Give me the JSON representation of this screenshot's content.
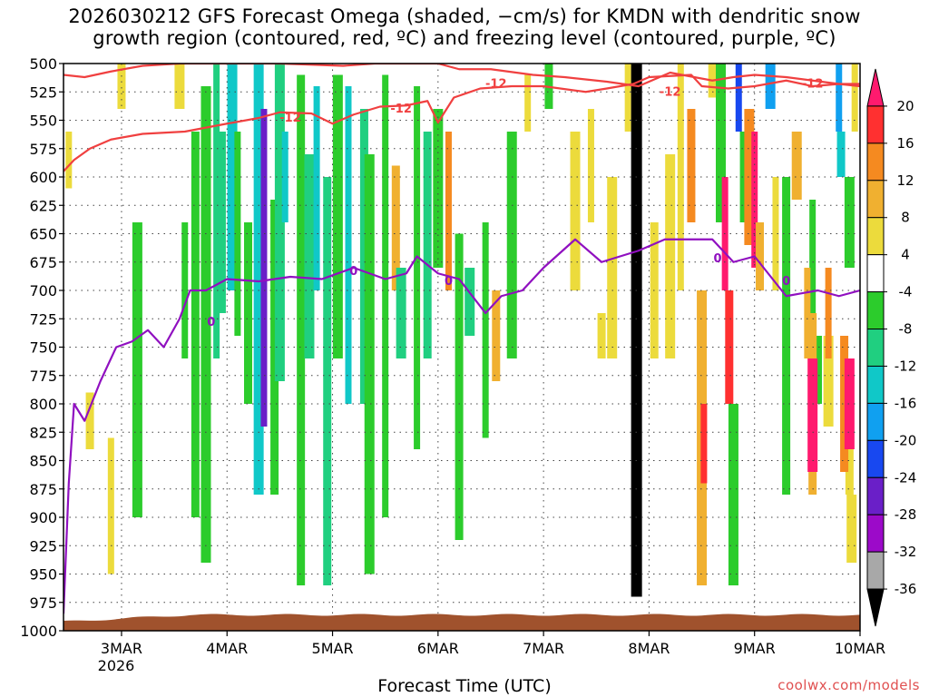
{
  "title": {
    "line1": "2026030212 GFS Forecast Omega (shaded, −cm/s) for KMDN with dendritic snow",
    "line2": "growth region (contoured, red, ºC) and freezing level (contoured, purple, ºC)"
  },
  "xlabel": "Forecast Time (UTC)",
  "credit": "coolwx.com/models",
  "chart_data": {
    "type": "heatmap",
    "x": {
      "tick_labels": [
        "3MAR",
        "4MAR",
        "5MAR",
        "6MAR",
        "7MAR",
        "8MAR",
        "9MAR",
        "10MAR"
      ],
      "sublabel": "2026",
      "range_days": [
        -0.55,
        7.0
      ]
    },
    "y": {
      "tick_labels": [
        "500",
        "525",
        "550",
        "575",
        "600",
        "625",
        "650",
        "675",
        "700",
        "725",
        "750",
        "775",
        "800",
        "825",
        "850",
        "875",
        "900",
        "925",
        "950",
        "975",
        "1000"
      ],
      "range_hpa": [
        500,
        1000
      ],
      "inverted": true
    },
    "colorbar": {
      "labels": [
        "20",
        "16",
        "12",
        "8",
        "4",
        "-4",
        "-8",
        "-12",
        "-16",
        "-20",
        "-24",
        "-28",
        "-32",
        "-36"
      ],
      "levels": [
        20,
        16,
        12,
        8,
        4,
        -4,
        -8,
        -12,
        -16,
        -20,
        -24,
        -28,
        -32,
        -36
      ],
      "colors": [
        "#ff1a6e",
        "#ff3030",
        "#f58a20",
        "#f0b030",
        "#ecdb3c",
        "#ffffff",
        "#2ccc2c",
        "#20cf80",
        "#10c8c8",
        "#10a0f0",
        "#1848f0",
        "#6a1fc8",
        "#9c0ac9",
        "#a8a8a8",
        "#000000"
      ]
    },
    "contours": [
      {
        "label": "-12",
        "color": "#f04040"
      },
      {
        "label": "0",
        "color": "#9010c0"
      }
    ],
    "dgz_top_hpa": [
      [
        -0.55,
        510
      ],
      [
        -0.35,
        512
      ],
      [
        -0.1,
        507
      ],
      [
        0.2,
        502
      ],
      [
        0.55,
        500
      ],
      [
        1.0,
        500
      ],
      [
        1.5,
        500
      ],
      [
        1.8,
        501
      ],
      [
        2.1,
        502
      ],
      [
        2.4,
        500
      ],
      [
        3.0,
        500
      ],
      [
        3.2,
        505
      ],
      [
        3.5,
        505
      ],
      [
        3.9,
        510
      ],
      [
        4.2,
        512
      ],
      [
        4.6,
        516
      ],
      [
        4.9,
        520
      ],
      [
        5.2,
        508
      ],
      [
        5.6,
        515
      ],
      [
        5.8,
        512
      ],
      [
        6.0,
        510
      ],
      [
        6.3,
        512
      ],
      [
        6.55,
        515
      ],
      [
        6.8,
        518
      ],
      [
        7.0,
        520
      ]
    ],
    "dgz_bottom_hpa": [
      [
        -0.55,
        595
      ],
      [
        -0.45,
        585
      ],
      [
        -0.3,
        575
      ],
      [
        -0.1,
        567
      ],
      [
        0.2,
        562
      ],
      [
        0.6,
        560
      ],
      [
        1.0,
        553
      ],
      [
        1.3,
        548
      ],
      [
        1.5,
        543
      ],
      [
        1.8,
        544
      ],
      [
        2.0,
        553
      ],
      [
        2.2,
        545
      ],
      [
        2.45,
        538
      ],
      [
        2.7,
        537
      ],
      [
        2.9,
        533
      ],
      [
        3.0,
        552
      ],
      [
        3.15,
        530
      ],
      [
        3.4,
        522
      ],
      [
        3.7,
        520
      ],
      [
        4.0,
        520
      ],
      [
        4.4,
        525
      ],
      [
        4.6,
        522
      ],
      [
        4.85,
        518
      ],
      [
        5.0,
        512
      ],
      [
        5.4,
        510
      ],
      [
        5.5,
        520
      ],
      [
        5.75,
        522
      ],
      [
        6.0,
        520
      ],
      [
        6.3,
        515
      ],
      [
        6.55,
        520
      ],
      [
        6.8,
        518
      ],
      [
        7.0,
        518
      ]
    ],
    "freezing_level_hpa": [
      [
        -0.55,
        985
      ],
      [
        -0.5,
        870
      ],
      [
        -0.45,
        800
      ],
      [
        -0.35,
        815
      ],
      [
        -0.2,
        780
      ],
      [
        -0.05,
        750
      ],
      [
        0.1,
        745
      ],
      [
        0.25,
        735
      ],
      [
        0.4,
        750
      ],
      [
        0.55,
        725
      ],
      [
        0.65,
        700
      ],
      [
        0.8,
        700
      ],
      [
        1.0,
        690
      ],
      [
        1.3,
        692
      ],
      [
        1.6,
        688
      ],
      [
        1.9,
        690
      ],
      [
        2.2,
        680
      ],
      [
        2.5,
        690
      ],
      [
        2.7,
        685
      ],
      [
        2.8,
        670
      ],
      [
        3.0,
        685
      ],
      [
        3.2,
        690
      ],
      [
        3.45,
        720
      ],
      [
        3.6,
        705
      ],
      [
        3.8,
        700
      ],
      [
        4.0,
        680
      ],
      [
        4.3,
        655
      ],
      [
        4.55,
        675
      ],
      [
        4.9,
        665
      ],
      [
        5.15,
        655
      ],
      [
        5.4,
        655
      ],
      [
        5.6,
        655
      ],
      [
        5.8,
        675
      ],
      [
        6.0,
        670
      ],
      [
        6.3,
        705
      ],
      [
        6.6,
        700
      ],
      [
        6.8,
        705
      ],
      [
        7.0,
        700
      ]
    ],
    "shading_cells": [
      [
        -0.5,
        560,
        610,
        4
      ],
      [
        -0.3,
        790,
        840,
        4
      ],
      [
        -0.15,
        690,
        900,
        -4
      ],
      [
        -0.1,
        830,
        950,
        4
      ],
      [
        0.0,
        500,
        540,
        4
      ],
      [
        0.15,
        640,
        900,
        -8
      ],
      [
        0.3,
        600,
        850,
        -4
      ],
      [
        0.45,
        800,
        860,
        -4
      ],
      [
        0.55,
        500,
        540,
        4
      ],
      [
        0.6,
        640,
        760,
        -8
      ],
      [
        0.7,
        560,
        900,
        -8
      ],
      [
        0.8,
        520,
        940,
        -8
      ],
      [
        0.9,
        500,
        760,
        -12
      ],
      [
        0.95,
        560,
        720,
        -12
      ],
      [
        1.05,
        500,
        700,
        -16
      ],
      [
        1.1,
        560,
        740,
        -8
      ],
      [
        1.2,
        640,
        800,
        -8
      ],
      [
        1.3,
        500,
        880,
        -16
      ],
      [
        1.35,
        540,
        820,
        -28
      ],
      [
        1.45,
        620,
        880,
        -8
      ],
      [
        1.5,
        500,
        780,
        -12
      ],
      [
        1.55,
        560,
        640,
        -16
      ],
      [
        1.7,
        510,
        960,
        -8
      ],
      [
        1.78,
        580,
        760,
        -12
      ],
      [
        1.85,
        520,
        700,
        -16
      ],
      [
        1.95,
        600,
        960,
        -12
      ],
      [
        2.05,
        510,
        760,
        -8
      ],
      [
        2.15,
        520,
        800,
        -16
      ],
      [
        2.3,
        540,
        800,
        -12
      ],
      [
        2.35,
        580,
        950,
        -8
      ],
      [
        2.5,
        510,
        900,
        -8
      ],
      [
        2.6,
        590,
        700,
        8
      ],
      [
        2.65,
        680,
        760,
        -12
      ],
      [
        2.8,
        520,
        840,
        -8
      ],
      [
        2.9,
        560,
        760,
        -12
      ],
      [
        3.0,
        540,
        680,
        -8
      ],
      [
        3.1,
        560,
        700,
        12
      ],
      [
        3.2,
        650,
        920,
        -8
      ],
      [
        3.3,
        680,
        740,
        -12
      ],
      [
        3.45,
        640,
        830,
        -8
      ],
      [
        3.55,
        700,
        780,
        8
      ],
      [
        3.7,
        560,
        760,
        -8
      ],
      [
        3.85,
        510,
        560,
        4
      ],
      [
        4.05,
        500,
        540,
        -8
      ],
      [
        4.3,
        560,
        700,
        4
      ],
      [
        4.45,
        540,
        640,
        4
      ],
      [
        4.55,
        720,
        760,
        4
      ],
      [
        4.65,
        600,
        760,
        4
      ],
      [
        4.8,
        500,
        560,
        4
      ],
      [
        5.05,
        640,
        760,
        4
      ],
      [
        5.2,
        580,
        760,
        4
      ],
      [
        5.3,
        500,
        700,
        4
      ],
      [
        5.4,
        540,
        640,
        12
      ],
      [
        5.5,
        700,
        960,
        8
      ],
      [
        5.52,
        800,
        870,
        16
      ],
      [
        5.6,
        500,
        530,
        4
      ],
      [
        5.68,
        500,
        640,
        -8
      ],
      [
        5.72,
        600,
        700,
        20
      ],
      [
        5.76,
        700,
        800,
        16
      ],
      [
        5.8,
        800,
        960,
        -8
      ],
      [
        5.85,
        500,
        560,
        -24
      ],
      [
        5.9,
        560,
        640,
        -8
      ],
      [
        5.95,
        540,
        660,
        12
      ],
      [
        6.0,
        560,
        680,
        20
      ],
      [
        6.05,
        640,
        700,
        8
      ],
      [
        6.15,
        500,
        540,
        -20
      ],
      [
        6.2,
        600,
        700,
        4
      ],
      [
        6.3,
        600,
        880,
        -8
      ],
      [
        6.4,
        560,
        620,
        8
      ],
      [
        6.55,
        620,
        760,
        -8
      ],
      [
        6.6,
        740,
        800,
        -8
      ],
      [
        6.7,
        740,
        820,
        4
      ],
      [
        6.8,
        500,
        560,
        -20
      ],
      [
        6.82,
        560,
        600,
        -16
      ],
      [
        6.9,
        600,
        680,
        -8
      ],
      [
        6.95,
        500,
        560,
        4
      ],
      [
        6.9,
        800,
        880,
        4
      ],
      [
        6.92,
        880,
        940,
        4
      ],
      [
        6.5,
        680,
        760,
        8
      ],
      [
        6.55,
        720,
        880,
        8
      ],
      [
        6.55,
        760,
        860,
        20
      ],
      [
        6.7,
        680,
        760,
        12
      ],
      [
        6.85,
        740,
        860,
        12
      ],
      [
        6.9,
        760,
        840,
        20
      ]
    ]
  }
}
